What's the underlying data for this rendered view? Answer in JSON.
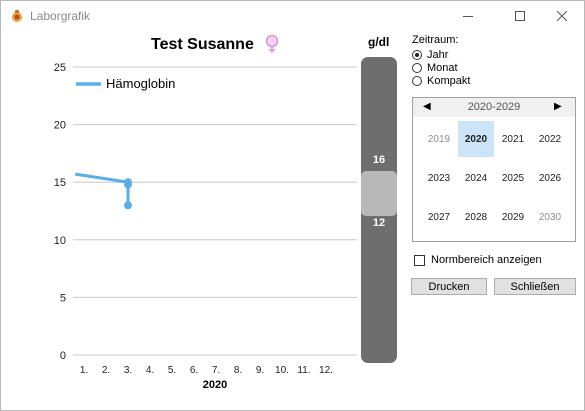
{
  "window": {
    "title": "Laborgrafik"
  },
  "chart": {
    "title": "Test Susanne",
    "unit": "g/dl",
    "legend": "Hämoglobin"
  },
  "chart_data": {
    "type": "line",
    "title": "Test Susanne",
    "ylabel": "g/dl",
    "xlabel": "2020",
    "ylim": [
      0,
      25
    ],
    "yticks": [
      0,
      5,
      10,
      15,
      20,
      25
    ],
    "xticks": [
      "1.",
      "2.",
      "3.",
      "4.",
      "5.",
      "6.",
      "7.",
      "8.",
      "9.",
      "10.",
      "11.",
      "12."
    ],
    "grid": true,
    "legend_position": "top-left",
    "series": [
      {
        "name": "Hämoglobin",
        "color": "#5aafe8",
        "x": [
          0.6,
          3,
          3,
          3
        ],
        "y": [
          15.7,
          15.0,
          14.8,
          13.0
        ]
      }
    ]
  },
  "range_bar": {
    "upper": "16",
    "lower": "12"
  },
  "controls": {
    "zeitraum_label": "Zeitraum:",
    "options": [
      "Jahr",
      "Monat",
      "Kompakt"
    ],
    "selected": "Jahr",
    "calendar": {
      "title": "2020-2029",
      "years": [
        "2019",
        "2020",
        "2021",
        "2022",
        "2023",
        "2024",
        "2025",
        "2026",
        "2027",
        "2028",
        "2029",
        "2030"
      ],
      "selected": "2020"
    },
    "normbereich_label": "Normbereich anzeigen",
    "print_label": "Drucken",
    "close_label": "Schließen"
  }
}
